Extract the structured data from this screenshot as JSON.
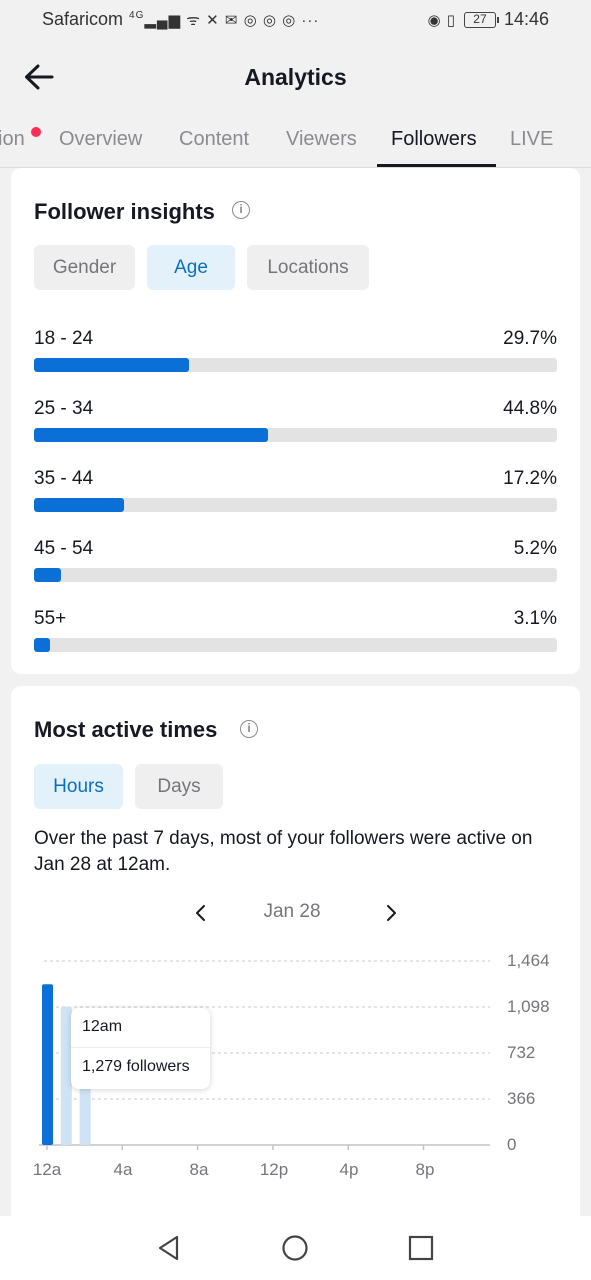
{
  "status_bar": {
    "carrier": "Safaricom",
    "network": "4G",
    "battery": "27",
    "time": "14:46"
  },
  "header": {
    "title": "Analytics",
    "back_icon": "arrow-left-icon"
  },
  "tabs": [
    {
      "label": "ion",
      "active": false,
      "badge": true
    },
    {
      "label": "Overview",
      "active": false
    },
    {
      "label": "Content",
      "active": false
    },
    {
      "label": "Viewers",
      "active": false
    },
    {
      "label": "Followers",
      "active": true
    },
    {
      "label": "LIVE",
      "active": false
    }
  ],
  "follower_insights": {
    "title": "Follower insights",
    "filters": [
      {
        "label": "Gender",
        "active": false
      },
      {
        "label": "Age",
        "active": true
      },
      {
        "label": "Locations",
        "active": false
      }
    ],
    "ages": [
      {
        "label": "18 - 24",
        "pct": "29.7%",
        "value": 29.7
      },
      {
        "label": "25 - 34",
        "pct": "44.8%",
        "value": 44.8
      },
      {
        "label": "35 - 44",
        "pct": "17.2%",
        "value": 17.2
      },
      {
        "label": "45 - 54",
        "pct": "5.2%",
        "value": 5.2
      },
      {
        "label": "55+",
        "pct": "3.1%",
        "value": 3.1
      }
    ]
  },
  "most_active": {
    "title": "Most active times",
    "filters": [
      {
        "label": "Hours",
        "active": true
      },
      {
        "label": "Days",
        "active": false
      }
    ],
    "summary": "Over the past 7 days, most of your followers were active on Jan 28 at 12am.",
    "date": "Jan 28",
    "tooltip": {
      "time": "12am",
      "count": "1,279 followers"
    }
  },
  "chart_data": {
    "type": "bar",
    "x_tick_labels": [
      "12a",
      "4a",
      "8a",
      "12p",
      "4p",
      "8p"
    ],
    "y_tick_labels": [
      "1,464",
      "1,098",
      "732",
      "366",
      "0"
    ],
    "ylim": [
      0,
      1464
    ],
    "x": [
      "12a",
      "1a",
      "2a"
    ],
    "values": [
      1279,
      1100,
      620
    ],
    "selected_index": 0,
    "colors": {
      "selected": "#0a6fd6",
      "other": "#cfe3f5"
    }
  },
  "colors": {
    "accent": "#0a6fd6",
    "badge": "#fe2c55"
  }
}
